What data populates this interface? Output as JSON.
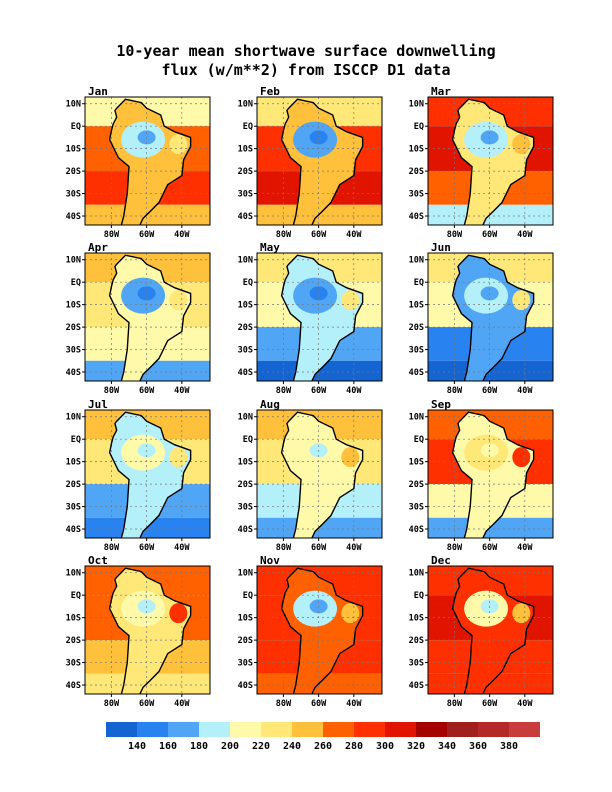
{
  "title": {
    "line1": "10-year mean shortwave surface downwelling",
    "line2": "flux (w/m**2) from ISCCP D1 data"
  },
  "panels": [
    "Jan",
    "Feb",
    "Mar",
    "Apr",
    "May",
    "Jun",
    "Jul",
    "Aug",
    "Sep",
    "Oct",
    "Nov",
    "Dec"
  ],
  "axes": {
    "lat_ticks": [
      "10N",
      "EQ",
      "10S",
      "20S",
      "30S",
      "40S"
    ],
    "lon_ticks": [
      "80W",
      "60W",
      "40W"
    ],
    "lat_range": [
      -44,
      13
    ],
    "lon_range": [
      -95,
      -24
    ]
  },
  "colorbar": {
    "labels": [
      "140",
      "160",
      "180",
      "200",
      "220",
      "240",
      "260",
      "280",
      "300",
      "320",
      "340",
      "360",
      "380"
    ],
    "colors": [
      "#1464d2",
      "#2882f0",
      "#50a5f5",
      "#b4f0fa",
      "#fffaaa",
      "#ffe878",
      "#ffc03c",
      "#ff6000",
      "#ff3000",
      "#e11400",
      "#a50000",
      "#a01e1e",
      "#b42828",
      "#c83c3c"
    ]
  }
}
